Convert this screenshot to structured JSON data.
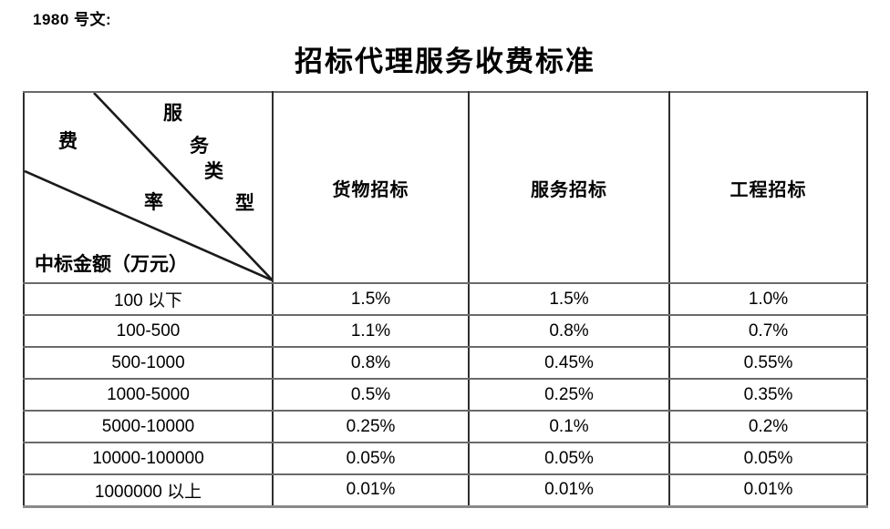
{
  "page": {
    "doc_ref": "1980 号文:",
    "title": "招标代理服务收费标准"
  },
  "table": {
    "corner": {
      "type_chars": [
        "服",
        "务",
        "类",
        "型"
      ],
      "rate_chars": [
        "费",
        "率"
      ],
      "type_label": "服务类型",
      "rate_label": "费率",
      "bottom_label": "中标金额（万元）"
    },
    "columns": [
      "货物招标",
      "服务招标",
      "工程招标"
    ],
    "rows": [
      {
        "range": "100 以下",
        "values": [
          "1.5%",
          "1.5%",
          "1.0%"
        ]
      },
      {
        "range": "100-500",
        "values": [
          "1.1%",
          "0.8%",
          "0.7%"
        ]
      },
      {
        "range": "500-1000",
        "values": [
          "0.8%",
          "0.45%",
          "0.55%"
        ]
      },
      {
        "range": "1000-5000",
        "values": [
          "0.5%",
          "0.25%",
          "0.35%"
        ]
      },
      {
        "range": "5000-10000",
        "values": [
          "0.25%",
          "0.1%",
          "0.2%"
        ]
      },
      {
        "range": "10000-100000",
        "values": [
          "0.05%",
          "0.05%",
          "0.05%"
        ]
      },
      {
        "range": "1000000 以上",
        "values": [
          "0.01%",
          "0.01%",
          "0.01%"
        ]
      }
    ]
  },
  "colors": {
    "text": "#000000",
    "background": "#ffffff",
    "border_vertical": "#2e2e2e",
    "border_horizontal": "#6a6a6a",
    "diagonal_line": "#1a1a1a"
  }
}
